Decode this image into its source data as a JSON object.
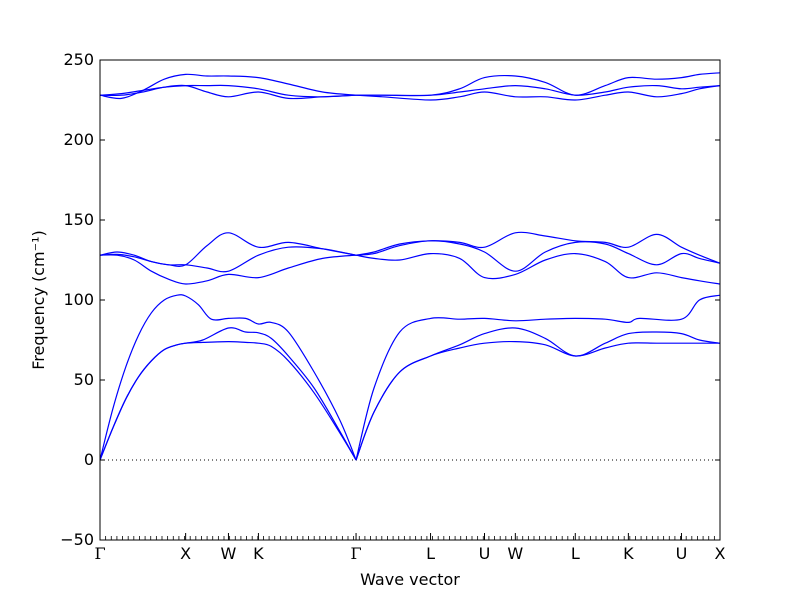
{
  "chart_data": {
    "type": "line",
    "xlabel": "Wave vector",
    "ylabel": "Frequency (cm⁻¹)",
    "ylim": [
      -50,
      250
    ],
    "yticks": [
      -50,
      0,
      50,
      100,
      150,
      200,
      250
    ],
    "x_range": [
      0,
      7.24
    ],
    "xticks": [
      {
        "label": "Γ",
        "x": 0
      },
      {
        "label": "X",
        "x": 1.0
      },
      {
        "label": "W",
        "x": 1.5
      },
      {
        "label": "K",
        "x": 1.85
      },
      {
        "label": "Γ",
        "x": 2.99
      },
      {
        "label": "L",
        "x": 3.86
      },
      {
        "label": "U",
        "x": 4.49
      },
      {
        "label": "W",
        "x": 4.85
      },
      {
        "label": "L",
        "x": 5.55
      },
      {
        "label": "K",
        "x": 6.17
      },
      {
        "label": "U",
        "x": 6.79
      },
      {
        "label": "X",
        "x": 7.24
      }
    ],
    "zero_line": {
      "y": 0,
      "style": "dotted"
    },
    "series_color": "#0000ff",
    "series": [
      {
        "x": [
          0,
          0.15,
          0.3,
          0.45,
          0.6,
          0.75,
          0.9,
          1.0,
          1.2,
          1.5,
          1.7,
          1.85,
          2.0,
          2.2,
          2.5,
          2.8,
          2.99
        ],
        "values": [
          0,
          20,
          38,
          52,
          62,
          69,
          72,
          73,
          73.5,
          74,
          73.5,
          73,
          71,
          62,
          42,
          17,
          0
        ]
      },
      {
        "x": [
          0,
          0.15,
          0.3,
          0.45,
          0.6,
          0.75,
          0.9,
          1.0,
          1.2,
          1.5,
          1.7,
          1.85,
          2.0,
          2.2,
          2.5,
          2.8,
          2.99
        ],
        "values": [
          0,
          20,
          38,
          52,
          62,
          69,
          72,
          73,
          75,
          82.5,
          80,
          79.5,
          76,
          65,
          45,
          18,
          0
        ]
      },
      {
        "x": [
          0,
          0.15,
          0.3,
          0.45,
          0.6,
          0.75,
          0.9,
          1.0,
          1.15,
          1.3,
          1.5,
          1.7,
          1.85,
          2.0,
          2.2,
          2.5,
          2.8,
          2.99
        ],
        "values": [
          0,
          32,
          58,
          78,
          92,
          100,
          103,
          102.5,
          97,
          88,
          88.5,
          88.5,
          85,
          86,
          80,
          55,
          25,
          0
        ]
      },
      {
        "x": [
          2.99,
          3.2,
          3.5,
          3.86,
          4.2,
          4.49,
          4.85,
          5.2,
          5.55,
          5.9,
          6.17,
          6.5,
          6.79,
          7.0,
          7.24
        ],
        "values": [
          0,
          30,
          55,
          65,
          70,
          73,
          74,
          72,
          65,
          70,
          73,
          73,
          73,
          73,
          73
        ]
      },
      {
        "x": [
          2.99,
          3.2,
          3.5,
          3.86,
          4.2,
          4.49,
          4.85,
          5.2,
          5.55,
          5.9,
          6.17,
          6.5,
          6.79,
          7.0,
          7.24
        ],
        "values": [
          0,
          30,
          55,
          65,
          72,
          79,
          82.5,
          76,
          65,
          73,
          79,
          80,
          79,
          75,
          73
        ]
      },
      {
        "x": [
          2.99,
          3.2,
          3.5,
          3.86,
          4.2,
          4.49,
          4.85,
          5.2,
          5.55,
          5.9,
          6.17,
          6.3,
          6.79,
          7.0,
          7.24
        ],
        "values": [
          0,
          45,
          80,
          88.5,
          88,
          88.5,
          87,
          88,
          88.5,
          88,
          86,
          88.5,
          88,
          100,
          103
        ]
      },
      {
        "x": [
          0,
          0.2,
          0.4,
          0.6,
          0.8,
          1.0,
          1.25,
          1.5,
          1.85,
          2.2,
          2.6,
          2.99
        ],
        "values": [
          128,
          128,
          125,
          118,
          113,
          110,
          112,
          116,
          114,
          120,
          126,
          128
        ]
      },
      {
        "x": [
          0,
          0.2,
          0.4,
          0.6,
          0.8,
          1.0,
          1.25,
          1.5,
          1.85,
          2.2,
          2.6,
          2.99
        ],
        "values": [
          128,
          128.5,
          127,
          124,
          122,
          122,
          120,
          118,
          128,
          133,
          132,
          128
        ]
      },
      {
        "x": [
          0,
          0.2,
          0.4,
          0.6,
          0.8,
          1.0,
          1.25,
          1.5,
          1.85,
          2.2,
          2.6,
          2.99
        ],
        "values": [
          128,
          130,
          128,
          124,
          122,
          122,
          134,
          142,
          133,
          136,
          132,
          128
        ]
      },
      {
        "x": [
          2.99,
          3.2,
          3.5,
          3.86,
          4.2,
          4.49,
          4.85,
          5.2,
          5.55,
          5.9,
          6.17,
          6.5,
          6.79,
          7.0,
          7.24
        ],
        "values": [
          128,
          126,
          125,
          129,
          126,
          114,
          116,
          125,
          129,
          124,
          114,
          117,
          114,
          112,
          110
        ]
      },
      {
        "x": [
          2.99,
          3.2,
          3.5,
          3.86,
          4.2,
          4.49,
          4.85,
          5.2,
          5.55,
          5.9,
          6.17,
          6.5,
          6.79,
          7.0,
          7.24
        ],
        "values": [
          128,
          129,
          134,
          137,
          135,
          130,
          118,
          130,
          136,
          135,
          129,
          122,
          129,
          126,
          123
        ]
      },
      {
        "x": [
          2.99,
          3.2,
          3.5,
          3.86,
          4.2,
          4.49,
          4.85,
          5.2,
          5.55,
          5.9,
          6.17,
          6.5,
          6.79,
          7.0,
          7.24
        ],
        "values": [
          128,
          130,
          135,
          137,
          136,
          133,
          142,
          140,
          137,
          136,
          133,
          141,
          133,
          128,
          123
        ]
      },
      {
        "x": [
          0,
          0.25,
          0.5,
          0.75,
          1.0,
          1.25,
          1.5,
          1.85,
          2.2,
          2.6,
          2.99
        ],
        "values": [
          228,
          228,
          230,
          233,
          234,
          230,
          227,
          230,
          226,
          227,
          228
        ]
      },
      {
        "x": [
          0,
          0.25,
          0.5,
          0.75,
          1.0,
          1.25,
          1.5,
          1.85,
          2.2,
          2.6,
          2.99
        ],
        "values": [
          228,
          229,
          231,
          233,
          234,
          234,
          234,
          232,
          228,
          227,
          228
        ]
      },
      {
        "x": [
          0,
          0.25,
          0.5,
          0.75,
          1.0,
          1.25,
          1.5,
          1.85,
          2.2,
          2.6,
          2.99
        ],
        "values": [
          228,
          226,
          231,
          238,
          241,
          240,
          240,
          239,
          235,
          230,
          228
        ]
      },
      {
        "x": [
          2.99,
          3.3,
          3.86,
          4.2,
          4.49,
          4.85,
          5.2,
          5.55,
          5.9,
          6.17,
          6.5,
          6.79,
          7.0,
          7.24
        ],
        "values": [
          228,
          227,
          225,
          227,
          230,
          227,
          227,
          225,
          228,
          230,
          227,
          229,
          232,
          234
        ]
      },
      {
        "x": [
          2.99,
          3.3,
          3.86,
          4.2,
          4.49,
          4.85,
          5.2,
          5.55,
          5.9,
          6.17,
          6.5,
          6.79,
          7.0,
          7.24
        ],
        "values": [
          228,
          228,
          228,
          230,
          232,
          234,
          232,
          228,
          230,
          233,
          234,
          232,
          233,
          234
        ]
      },
      {
        "x": [
          2.99,
          3.3,
          3.86,
          4.2,
          4.49,
          4.85,
          5.2,
          5.55,
          5.9,
          6.17,
          6.5,
          6.79,
          7.0,
          7.24
        ],
        "values": [
          228,
          228,
          228,
          232,
          239,
          240,
          236,
          228,
          234,
          239,
          238,
          239,
          241,
          242
        ]
      }
    ]
  }
}
